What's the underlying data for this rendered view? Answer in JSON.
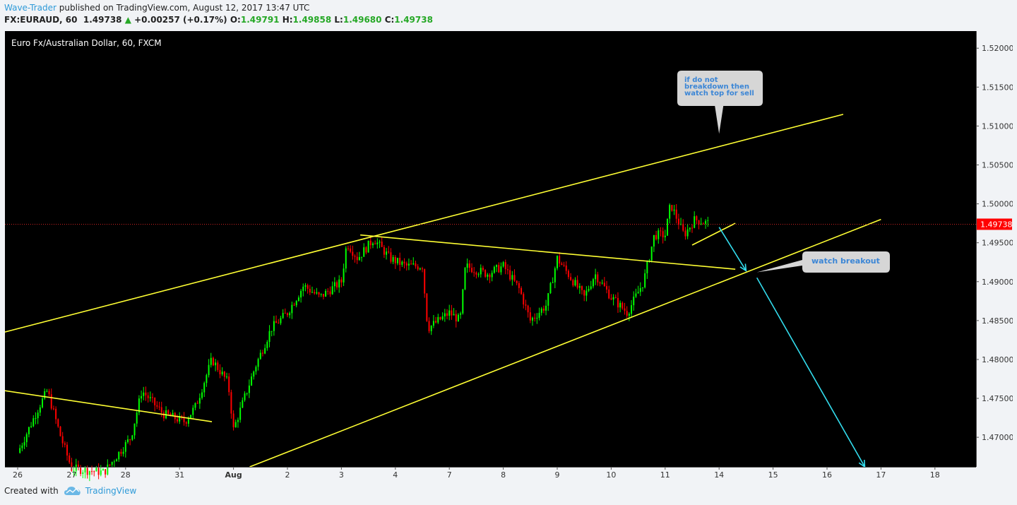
{
  "header": {
    "author": "Wave-Trader",
    "published": " published on TradingView.com, August 12, 2017 13:47 UTC",
    "symbol": "FX:EURAUD, 60",
    "last": "1.49738",
    "change": "+0.00257 (+0.17%)",
    "o_label": "O:",
    "o": "1.49791",
    "h_label": "H:",
    "h": "1.49858",
    "l_label": "L:",
    "l": "1.49680",
    "c_label": "C:",
    "c": "1.49738",
    "up_icon": "triangle-up-icon"
  },
  "footer": {
    "created_with": "Created with",
    "brand": "TradingView",
    "logo_icon": "tradingview-cloud-icon"
  },
  "colors": {
    "background": "#000000",
    "up": "#00ff00",
    "down": "#ff0000",
    "trendline": "#ffff33",
    "arrow": "#33ddee",
    "price_tag": "#ff0000"
  },
  "chart_data": {
    "type": "candlestick",
    "title": "Euro Fx/Australian Dollar, 60, FXCM",
    "x_ticks": [
      "26",
      "27",
      "28",
      "31",
      "Aug",
      "2",
      "3",
      "4",
      "7",
      "8",
      "9",
      "10",
      "11",
      "14",
      "15",
      "16",
      "17",
      "18"
    ],
    "y_ticks": [
      "1.47000",
      "1.47500",
      "1.48000",
      "1.48500",
      "1.49000",
      "1.49500",
      "1.50000",
      "1.50500",
      "1.51000",
      "1.51500",
      "1.52000"
    ],
    "ylim": [
      1.4662,
      1.5222
    ],
    "last_price": "1.49738",
    "key_path": [
      [
        0,
        1.468
      ],
      [
        0.4,
        1.474
      ],
      [
        0.55,
        1.476
      ],
      [
        0.8,
        1.47
      ],
      [
        1.0,
        1.466
      ],
      [
        1.6,
        1.4655
      ],
      [
        2.1,
        1.47
      ],
      [
        2.3,
        1.476
      ],
      [
        2.7,
        1.473
      ],
      [
        3.1,
        1.472
      ],
      [
        3.3,
        1.474
      ],
      [
        3.6,
        1.48
      ],
      [
        3.9,
        1.477
      ],
      [
        4.0,
        1.471
      ],
      [
        4.4,
        1.479
      ],
      [
        4.7,
        1.484
      ],
      [
        5.0,
        1.486
      ],
      [
        5.3,
        1.4895
      ],
      [
        5.6,
        1.488
      ],
      [
        6.0,
        1.49
      ],
      [
        6.1,
        1.495
      ],
      [
        6.3,
        1.493
      ],
      [
        6.6,
        1.4955
      ],
      [
        6.9,
        1.493
      ],
      [
        7.2,
        1.492
      ],
      [
        7.5,
        1.492
      ],
      [
        7.6,
        1.484
      ],
      [
        8.0,
        1.486
      ],
      [
        8.2,
        1.485
      ],
      [
        8.3,
        1.492
      ],
      [
        8.7,
        1.491
      ],
      [
        9.0,
        1.492
      ],
      [
        9.3,
        1.489
      ],
      [
        9.5,
        1.485
      ],
      [
        9.8,
        1.487
      ],
      [
        10.0,
        1.493
      ],
      [
        10.5,
        1.488
      ],
      [
        10.7,
        1.491
      ],
      [
        11.0,
        1.488
      ],
      [
        11.3,
        1.486
      ],
      [
        11.6,
        1.49
      ],
      [
        11.8,
        1.496
      ],
      [
        12.0,
        1.496
      ],
      [
        12.1,
        1.5
      ],
      [
        12.35,
        1.496
      ],
      [
        12.55,
        1.498
      ],
      [
        12.8,
        1.4975
      ]
    ],
    "trendlines": [
      {
        "from": [
          -0.25,
          1.4835
        ],
        "to": [
          15.3,
          1.5115
        ]
      },
      {
        "from": [
          4.3,
          1.4662
        ],
        "to": [
          16.0,
          1.498
        ]
      },
      {
        "from": [
          -0.25,
          1.476
        ],
        "to": [
          3.6,
          1.472
        ]
      },
      {
        "from": [
          6.35,
          1.496
        ],
        "to": [
          13.3,
          1.4916
        ]
      },
      {
        "from": [
          12.5,
          1.4947
        ],
        "to": [
          13.3,
          1.4975
        ]
      }
    ],
    "arrows": [
      {
        "from": [
          13.0,
          1.497
        ],
        "to": [
          13.5,
          1.4914
        ]
      },
      {
        "from": [
          13.7,
          1.4905
        ],
        "to": [
          15.7,
          1.4662
        ]
      }
    ],
    "annotations": [
      {
        "text": "if do not breakdown then watch top for sell",
        "lines": [
          "if do not",
          "breakdown then",
          "watch top for sell"
        ],
        "anchor": [
          13.0,
          1.509
        ]
      },
      {
        "text": "watch breakout",
        "lines": [
          "watch breakout"
        ],
        "anchor": [
          13.7,
          1.4912
        ]
      }
    ]
  }
}
